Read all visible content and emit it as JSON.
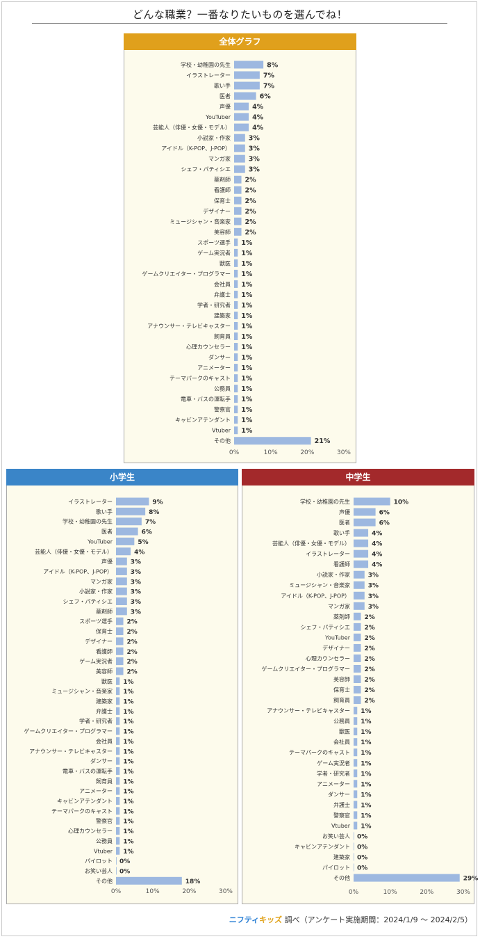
{
  "title": "どんな職業？一番なりたいものを選んでね！",
  "colors": {
    "overall": "#e0a01c",
    "elementary": "#3a85c8",
    "junior": "#a3292b",
    "bar": "#9db8e0"
  },
  "footer": {
    "brand_part1": "ニフティ",
    "brand_part2": "キッズ",
    "text": "調べ（アンケート実施期間：2024/1/9 ～ 2024/2/5）"
  },
  "chart_data": [
    {
      "type": "bar",
      "orientation": "horizontal",
      "title": "全体グラフ",
      "xlim": [
        0,
        30
      ],
      "ticks": [
        "0%",
        "10%",
        "20%",
        "30%"
      ],
      "categories": [
        "学校・幼稚園の先生",
        "イラストレーター",
        "歌い手",
        "医者",
        "声優",
        "YouTuber",
        "芸能人（俳優・女優・モデル）",
        "小説家・作家",
        "アイドル（K-POP、J-POP）",
        "マンガ家",
        "シェフ・パティシエ",
        "薬剤師",
        "看護師",
        "保育士",
        "デザイナー",
        "ミュージシャン・音楽家",
        "美容師",
        "スポーツ選手",
        "ゲーム実況者",
        "獣医",
        "ゲームクリエイター・プログラマー",
        "会社員",
        "弁護士",
        "学者・研究者",
        "建築家",
        "アナウンサー・テレビキャスター",
        "飼育員",
        "心理カウンセラー",
        "ダンサー",
        "アニメーター",
        "テーマパークのキャスト",
        "公務員",
        "電車・バスの運転手",
        "警察官",
        "キャビンアテンダント",
        "Vtuber",
        "その他"
      ],
      "values": [
        8,
        7,
        7,
        6,
        4,
        4,
        4,
        3,
        3,
        3,
        3,
        2,
        2,
        2,
        2,
        2,
        2,
        1,
        1,
        1,
        1,
        1,
        1,
        1,
        1,
        1,
        1,
        1,
        1,
        1,
        1,
        1,
        1,
        1,
        1,
        1,
        21
      ],
      "labels": [
        "8%",
        "7%",
        "7%",
        "6%",
        "4%",
        "4%",
        "4%",
        "3%",
        "3%",
        "3%",
        "3%",
        "2%",
        "2%",
        "2%",
        "2%",
        "2%",
        "2%",
        "1%",
        "1%",
        "1%",
        "1%",
        "1%",
        "1%",
        "1%",
        "1%",
        "1%",
        "1%",
        "1%",
        "1%",
        "1%",
        "1%",
        "1%",
        "1%",
        "1%",
        "1%",
        "1%",
        "21%"
      ]
    },
    {
      "type": "bar",
      "orientation": "horizontal",
      "title": "小学生",
      "xlim": [
        0,
        30
      ],
      "ticks": [
        "0%",
        "10%",
        "20%",
        "30%"
      ],
      "categories": [
        "イラストレーター",
        "歌い手",
        "学校・幼稚園の先生",
        "医者",
        "YouTuber",
        "芸能人（俳優・女優・モデル）",
        "声優",
        "アイドル（K-POP、J-POP）",
        "マンガ家",
        "小説家・作家",
        "シェフ・パティシエ",
        "薬剤師",
        "スポーツ選手",
        "保育士",
        "デザイナー",
        "看護師",
        "ゲーム実況者",
        "美容師",
        "獣医",
        "ミュージシャン・音楽家",
        "建築家",
        "弁護士",
        "学者・研究者",
        "ゲームクリエイター・プログラマー",
        "会社員",
        "アナウンサー・テレビキャスター",
        "ダンサー",
        "電車・バスの運転手",
        "飼育員",
        "アニメーター",
        "キャビンアテンダント",
        "テーマパークのキャスト",
        "警察官",
        "心理カウンセラー",
        "公務員",
        "Vtuber",
        "パイロット",
        "お笑い芸人",
        "その他"
      ],
      "values": [
        9,
        8,
        7,
        6,
        5,
        4,
        3,
        3,
        3,
        3,
        3,
        3,
        2,
        2,
        2,
        2,
        2,
        2,
        1,
        1,
        1,
        1,
        1,
        1,
        1,
        1,
        1,
        1,
        1,
        1,
        1,
        1,
        1,
        1,
        1,
        1,
        0,
        0,
        18
      ],
      "labels": [
        "9%",
        "8%",
        "7%",
        "6%",
        "5%",
        "4%",
        "3%",
        "3%",
        "3%",
        "3%",
        "3%",
        "3%",
        "2%",
        "2%",
        "2%",
        "2%",
        "2%",
        "2%",
        "1%",
        "1%",
        "1%",
        "1%",
        "1%",
        "1%",
        "1%",
        "1%",
        "1%",
        "1%",
        "1%",
        "1%",
        "1%",
        "1%",
        "1%",
        "1%",
        "1%",
        "1%",
        "0%",
        "0%",
        "18%"
      ]
    },
    {
      "type": "bar",
      "orientation": "horizontal",
      "title": "中学生",
      "xlim": [
        0,
        30
      ],
      "ticks": [
        "0%",
        "10%",
        "20%",
        "30%"
      ],
      "categories": [
        "学校・幼稚園の先生",
        "声優",
        "医者",
        "歌い手",
        "芸能人（俳優・女優・モデル）",
        "イラストレーター",
        "看護師",
        "小説家・作家",
        "ミュージシャン・音楽家",
        "アイドル（K-POP、J-POP）",
        "マンガ家",
        "薬剤師",
        "シェフ・パティシエ",
        "YouTuber",
        "デザイナー",
        "心理カウンセラー",
        "ゲームクリエイター・プログラマー",
        "美容師",
        "保育士",
        "飼育員",
        "アナウンサー・テレビキャスター",
        "公務員",
        "獣医",
        "会社員",
        "テーマパークのキャスト",
        "ゲーム実況者",
        "学者・研究者",
        "アニメーター",
        "ダンサー",
        "弁護士",
        "警察官",
        "Vtuber",
        "お笑い芸人",
        "キャビンアテンダント",
        "建築家",
        "パイロット",
        "その他"
      ],
      "values": [
        10,
        6,
        6,
        4,
        4,
        4,
        4,
        3,
        3,
        3,
        3,
        2,
        2,
        2,
        2,
        2,
        2,
        2,
        2,
        2,
        1,
        1,
        1,
        1,
        1,
        1,
        1,
        1,
        1,
        1,
        1,
        1,
        0,
        0,
        0,
        0,
        29
      ],
      "labels": [
        "10%",
        "6%",
        "6%",
        "4%",
        "4%",
        "4%",
        "4%",
        "3%",
        "3%",
        "3%",
        "3%",
        "2%",
        "2%",
        "2%",
        "2%",
        "2%",
        "2%",
        "2%",
        "2%",
        "2%",
        "1%",
        "1%",
        "1%",
        "1%",
        "1%",
        "1%",
        "1%",
        "1%",
        "1%",
        "1%",
        "1%",
        "1%",
        "0%",
        "0%",
        "0%",
        "0%",
        "29%"
      ]
    }
  ]
}
